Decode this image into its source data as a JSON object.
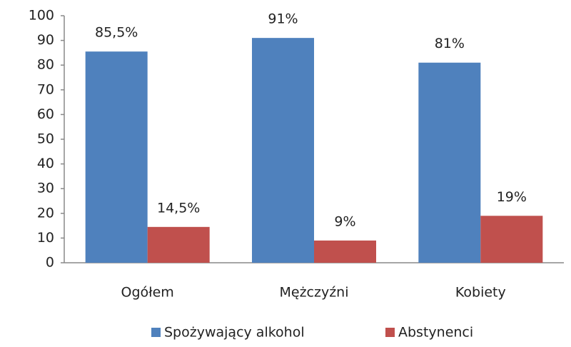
{
  "chart_data": {
    "type": "bar",
    "categories": [
      "Ogółem",
      "Mężczyźni",
      "Kobiety"
    ],
    "series": [
      {
        "name": "Spożywający alkohol",
        "color": "#4f81bd",
        "values": [
          85.5,
          91,
          81
        ],
        "value_labels": [
          "85,5%",
          "91%",
          "81%"
        ]
      },
      {
        "name": "Abstynenci",
        "color": "#c0504d",
        "values": [
          14.5,
          9,
          19
        ],
        "value_labels": [
          "14,5%",
          "9%",
          "19%"
        ]
      }
    ],
    "ylim": [
      0,
      100
    ],
    "yticks": [
      0,
      10,
      20,
      30,
      40,
      50,
      60,
      70,
      80,
      90,
      100
    ],
    "grid": false,
    "legend": "bottom"
  }
}
